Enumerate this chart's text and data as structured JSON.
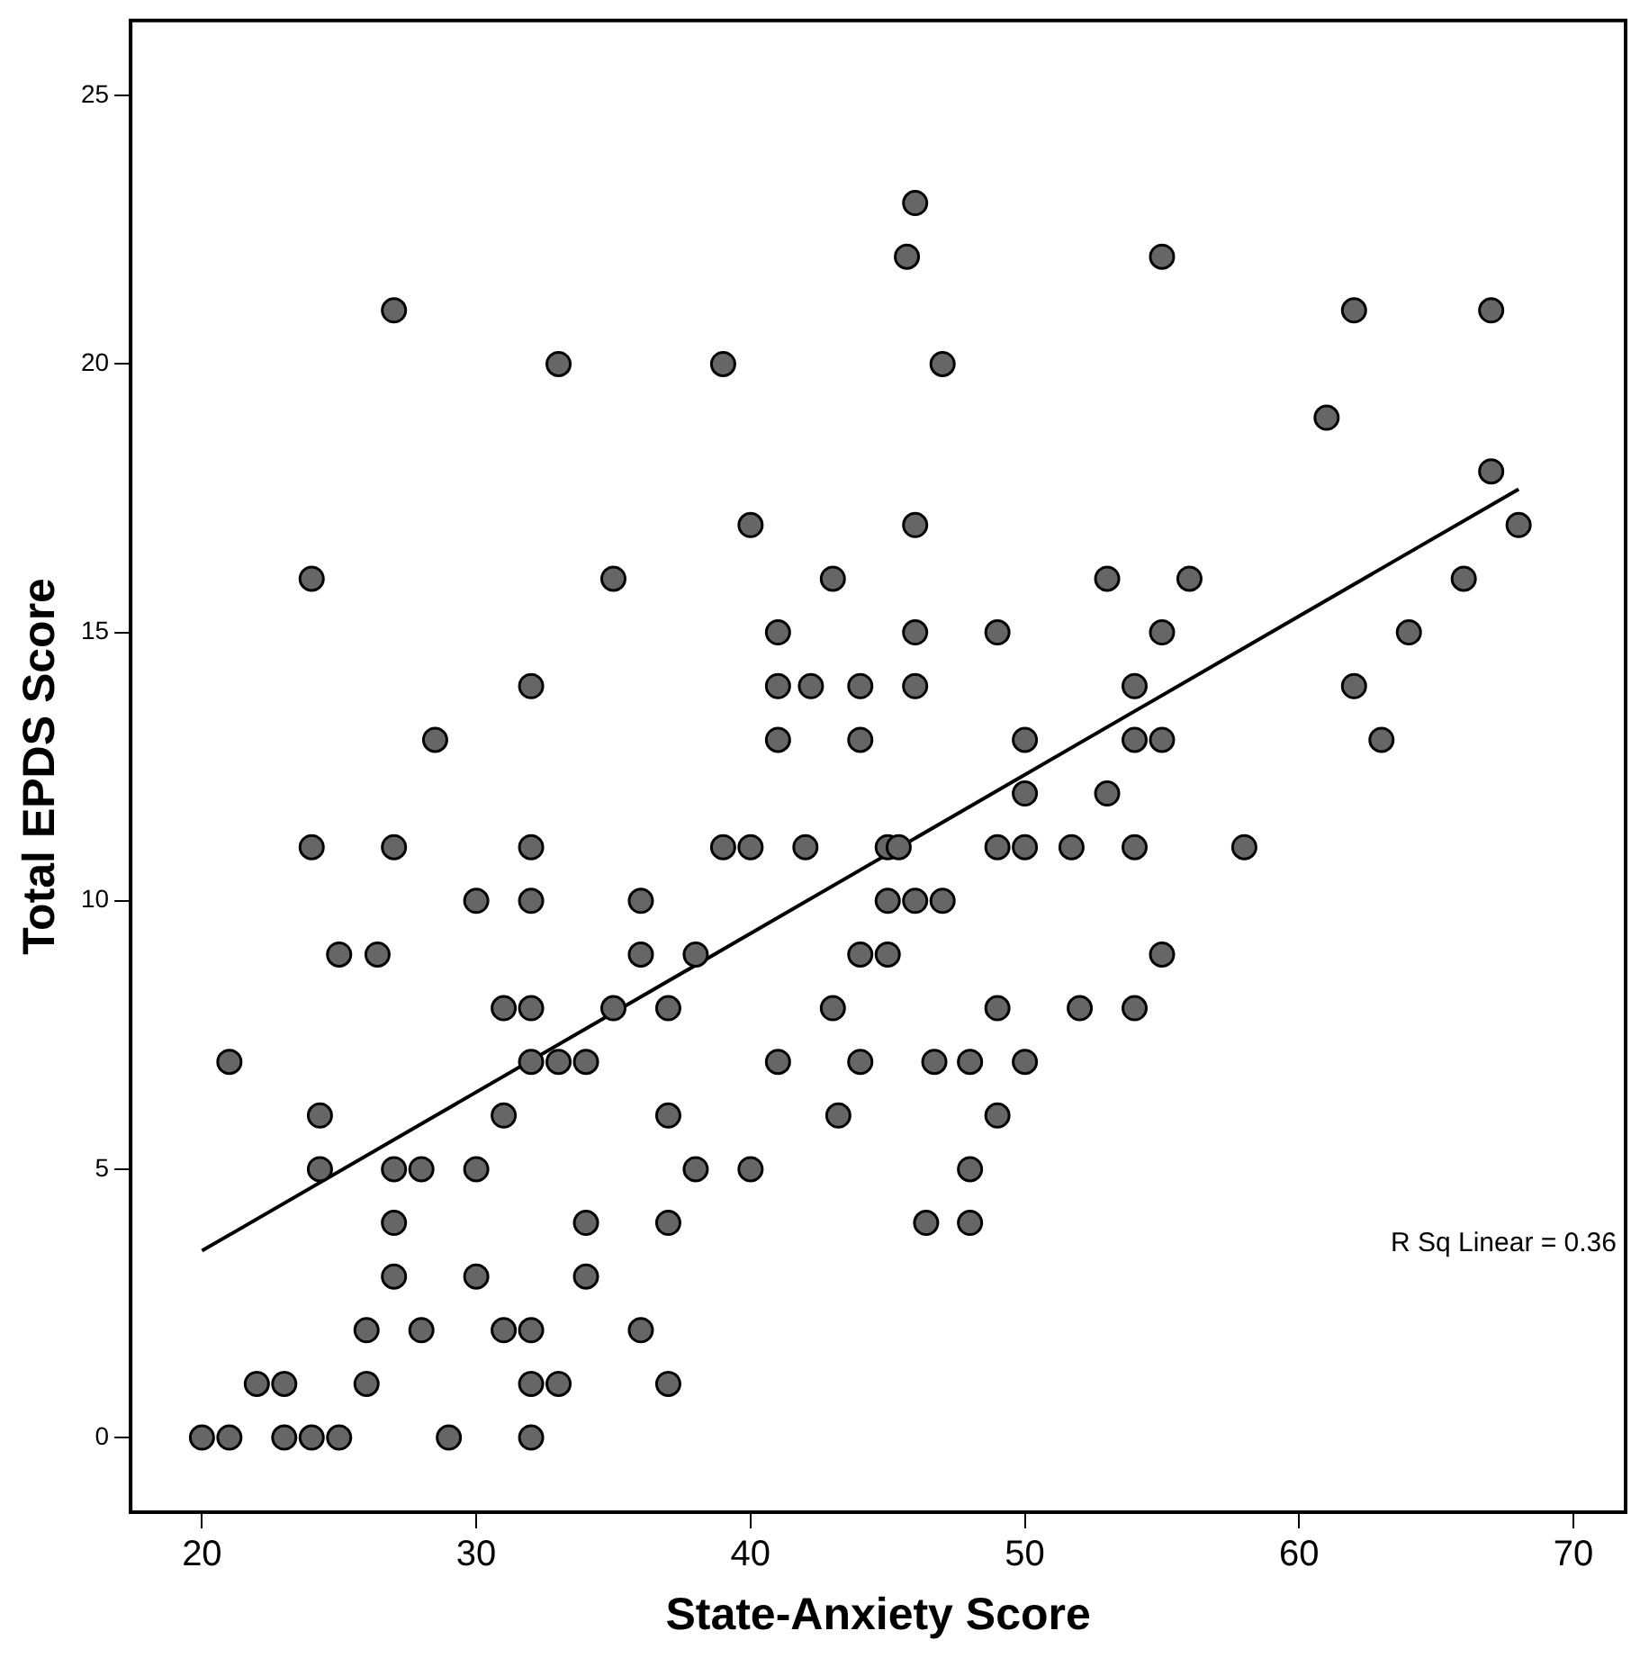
{
  "chart_data": {
    "type": "scatter",
    "xlabel": "State-Anxiety Score",
    "ylabel": "Total EPDS Score",
    "xlim": [
      17.4,
      71.9
    ],
    "ylim": [
      -1.39,
      26.4
    ],
    "xticks": [
      20,
      30,
      40,
      50,
      60,
      70
    ],
    "yticks": [
      0,
      5,
      10,
      15,
      20,
      25
    ],
    "grid": false,
    "legend": false,
    "annotations": [
      "R Sq Linear = 0.36"
    ],
    "series": [
      {
        "type": "scatter",
        "color": "#666666",
        "marker": "circle",
        "x": [
          20,
          21,
          23,
          24,
          25,
          29,
          32,
          22,
          23,
          26,
          32,
          33,
          37,
          26,
          28,
          31,
          32,
          36,
          27,
          30,
          34,
          27,
          34,
          37,
          46.4,
          48,
          24.3,
          27,
          28,
          30,
          38,
          40,
          48,
          24.3,
          31,
          37,
          43.2,
          49,
          21,
          32,
          33,
          34,
          41,
          44,
          46.7,
          48,
          50,
          31,
          32,
          35,
          37,
          43,
          49,
          52,
          54,
          25,
          26.4,
          36,
          38,
          44,
          45,
          55,
          30,
          32,
          36,
          45,
          46,
          47,
          24,
          27,
          32,
          39,
          40,
          42,
          45,
          45.4,
          49,
          50,
          51.7,
          54,
          58,
          50,
          53,
          28.5,
          41,
          44,
          50,
          54,
          55,
          63,
          32,
          41,
          42.2,
          44,
          46,
          54,
          62,
          41,
          46,
          49,
          55,
          64,
          24,
          35,
          43,
          53,
          56,
          66,
          40,
          46,
          68,
          67,
          61,
          33,
          39,
          47,
          27,
          62,
          67,
          45.7,
          55,
          46
        ],
        "values": [
          0,
          0,
          0,
          0,
          0,
          0,
          0,
          1,
          1,
          1,
          1,
          1,
          1,
          2,
          2,
          2,
          2,
          2,
          3,
          3,
          3,
          4,
          4,
          4,
          4,
          4,
          5,
          5,
          5,
          5,
          5,
          5,
          5,
          6,
          6,
          6,
          6,
          6,
          7,
          7,
          7,
          7,
          7,
          7,
          7,
          7,
          7,
          8,
          8,
          8,
          8,
          8,
          8,
          8,
          8,
          9,
          9,
          9,
          9,
          9,
          9,
          9,
          10,
          10,
          10,
          10,
          10,
          10,
          11,
          11,
          11,
          11,
          11,
          11,
          11,
          11,
          11,
          11,
          11,
          11,
          11,
          12,
          12,
          13,
          13,
          13,
          13,
          13,
          13,
          13,
          14,
          14,
          14,
          14,
          14,
          14,
          14,
          15,
          15,
          15,
          15,
          15,
          16,
          16,
          16,
          16,
          16,
          16,
          17,
          17,
          17,
          18,
          19,
          20,
          20,
          20,
          21,
          21,
          21,
          22,
          22,
          23
        ]
      },
      {
        "type": "line",
        "color": "#000000",
        "marker": "none",
        "line_style": "solid",
        "x": [
          20,
          68
        ],
        "values": [
          3.48,
          17.67
        ]
      }
    ]
  }
}
